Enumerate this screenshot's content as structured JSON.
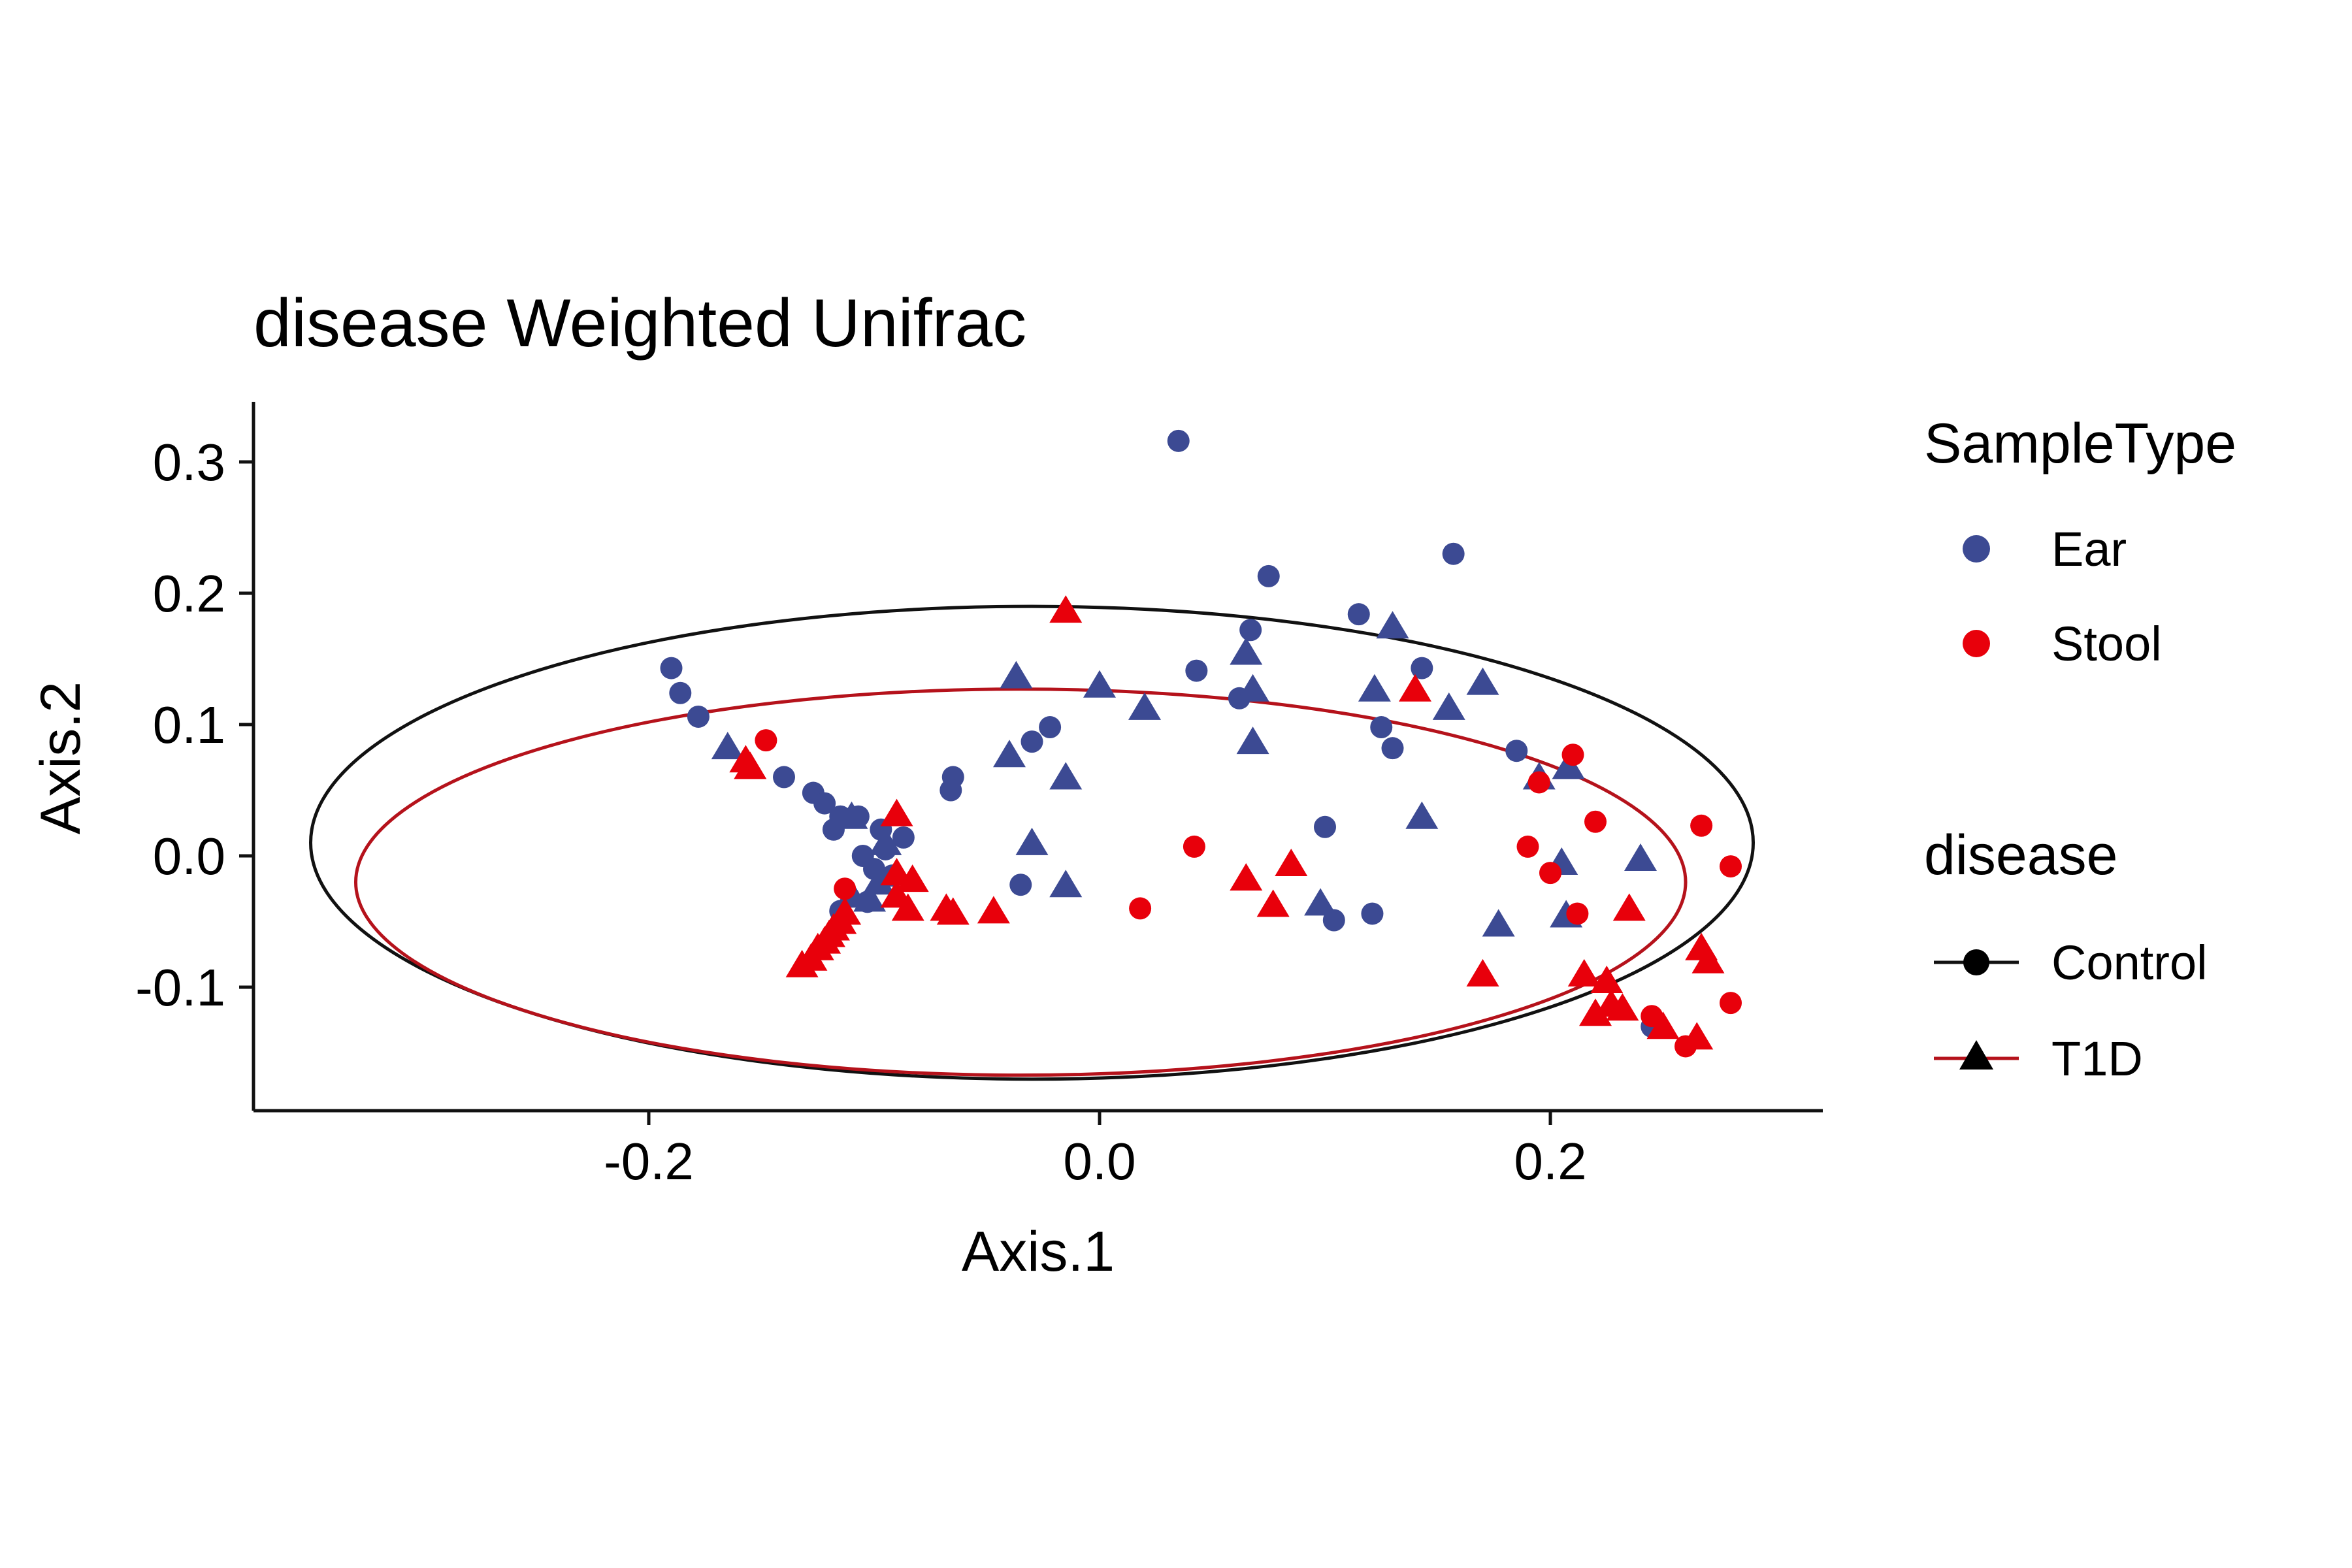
{
  "chart_data": {
    "type": "scatter",
    "title": "disease Weighted Unifrac",
    "xlabel": "Axis.1",
    "ylabel": "Axis.2",
    "xlim": [
      -0.375,
      0.325
    ],
    "ylim": [
      -0.2,
      0.34
    ],
    "x_ticks": [
      -0.2,
      0.0,
      0.2
    ],
    "y_ticks": [
      -0.1,
      0.0,
      0.1,
      0.2,
      0.3
    ],
    "x_tick_labels": [
      "-0.2",
      "0.0",
      "0.2"
    ],
    "y_tick_labels": [
      "-0.1",
      "0.0",
      "0.1",
      "0.2",
      "0.3"
    ],
    "grid": false,
    "legend_position": "right",
    "legend_color": {
      "title": "SampleType",
      "entries": [
        {
          "label": "Ear",
          "color": "#3c4a93"
        },
        {
          "label": "Stool",
          "color": "#e8000b"
        }
      ]
    },
    "legend_shape": {
      "title": "disease",
      "entries": [
        {
          "label": "Control",
          "shape": "circle",
          "line_color": "#111111"
        },
        {
          "label": "T1D",
          "shape": "triangle",
          "line_color": "#b5121b"
        }
      ]
    },
    "ellipses": [
      {
        "group": "Control",
        "center": [
          -0.03,
          0.01
        ],
        "rx": 0.32,
        "ry": 0.18,
        "color": "#111111"
      },
      {
        "group": "T1D",
        "center": [
          -0.035,
          -0.02
        ],
        "rx": 0.295,
        "ry": 0.147,
        "color": "#b5121b"
      }
    ],
    "series": [
      {
        "sample_type": "Ear",
        "disease": "Control",
        "shape": "circle",
        "color": "#3c4a93",
        "points": [
          [
            0.035,
            0.316
          ],
          [
            0.075,
            0.213
          ],
          [
            0.157,
            0.23
          ],
          [
            0.115,
            0.184
          ],
          [
            0.067,
            0.172
          ],
          [
            0.043,
            0.141
          ],
          [
            0.143,
            0.143
          ],
          [
            0.062,
            0.12
          ],
          [
            0.125,
            0.098
          ],
          [
            0.13,
            0.082
          ],
          [
            -0.19,
            0.143
          ],
          [
            -0.186,
            0.124
          ],
          [
            -0.178,
            0.106
          ],
          [
            -0.14,
            0.06
          ],
          [
            -0.127,
            0.048
          ],
          [
            -0.122,
            0.04
          ],
          [
            -0.115,
            0.03
          ],
          [
            -0.107,
            0.03
          ],
          [
            -0.118,
            0.02
          ],
          [
            -0.097,
            0.02
          ],
          [
            -0.087,
            0.014
          ],
          [
            -0.105,
            0.0
          ],
          [
            -0.095,
            0.005
          ],
          [
            -0.1,
            -0.01
          ],
          [
            -0.092,
            -0.015
          ],
          [
            -0.065,
            0.06
          ],
          [
            -0.066,
            0.05
          ],
          [
            -0.022,
            0.098
          ],
          [
            -0.03,
            0.087
          ],
          [
            -0.035,
            -0.022
          ],
          [
            0.1,
            0.022
          ],
          [
            0.104,
            -0.049
          ],
          [
            0.121,
            -0.044
          ],
          [
            0.185,
            0.08
          ],
          [
            0.245,
            -0.13
          ],
          [
            -0.115,
            -0.042
          ],
          [
            -0.103,
            -0.035
          ]
        ]
      },
      {
        "sample_type": "Ear",
        "disease": "T1D",
        "shape": "triangle",
        "color": "#3c4a93",
        "points": [
          [
            0.13,
            0.175
          ],
          [
            0.065,
            0.155
          ],
          [
            0.0,
            0.13
          ],
          [
            0.02,
            0.113
          ],
          [
            0.068,
            0.127
          ],
          [
            -0.037,
            0.137
          ],
          [
            0.122,
            0.127
          ],
          [
            0.155,
            0.113
          ],
          [
            0.17,
            0.132
          ],
          [
            0.068,
            0.087
          ],
          [
            -0.04,
            0.077
          ],
          [
            -0.015,
            0.06
          ],
          [
            0.143,
            0.03
          ],
          [
            0.195,
            0.06
          ],
          [
            0.208,
            0.068
          ],
          [
            -0.165,
            0.083
          ],
          [
            -0.11,
            0.03
          ],
          [
            -0.095,
            0.01
          ],
          [
            -0.098,
            -0.02
          ],
          [
            -0.102,
            -0.033
          ],
          [
            -0.11,
            -0.03
          ],
          [
            -0.03,
            0.01
          ],
          [
            -0.015,
            -0.022
          ],
          [
            0.098,
            -0.036
          ],
          [
            0.177,
            -0.052
          ],
          [
            0.205,
            -0.005
          ],
          [
            0.207,
            -0.045
          ],
          [
            0.24,
            -0.002
          ]
        ]
      },
      {
        "sample_type": "Stool",
        "disease": "Control",
        "shape": "circle",
        "color": "#e8000b",
        "points": [
          [
            -0.148,
            0.088
          ],
          [
            -0.113,
            -0.025
          ],
          [
            0.042,
            0.007
          ],
          [
            0.018,
            -0.04
          ],
          [
            0.19,
            0.007
          ],
          [
            0.195,
            0.056
          ],
          [
            0.21,
            0.077
          ],
          [
            0.22,
            0.026
          ],
          [
            0.2,
            -0.013
          ],
          [
            0.212,
            -0.044
          ],
          [
            0.267,
            0.023
          ],
          [
            0.28,
            -0.008
          ],
          [
            0.28,
            -0.112
          ],
          [
            0.245,
            -0.122
          ],
          [
            0.26,
            -0.145
          ]
        ]
      },
      {
        "sample_type": "Stool",
        "disease": "T1D",
        "shape": "triangle",
        "color": "#e8000b",
        "points": [
          [
            -0.015,
            0.187
          ],
          [
            0.14,
            0.127
          ],
          [
            -0.157,
            0.073
          ],
          [
            -0.155,
            0.068
          ],
          [
            -0.09,
            0.032
          ],
          [
            -0.09,
            -0.013
          ],
          [
            -0.083,
            -0.018
          ],
          [
            -0.09,
            -0.03
          ],
          [
            -0.085,
            -0.04
          ],
          [
            -0.068,
            -0.04
          ],
          [
            -0.065,
            -0.043
          ],
          [
            -0.047,
            -0.042
          ],
          [
            -0.113,
            -0.043
          ],
          [
            -0.115,
            -0.05
          ],
          [
            -0.118,
            -0.055
          ],
          [
            -0.12,
            -0.06
          ],
          [
            -0.122,
            -0.065
          ],
          [
            -0.125,
            -0.07
          ],
          [
            -0.128,
            -0.078
          ],
          [
            -0.132,
            -0.083
          ],
          [
            0.065,
            -0.017
          ],
          [
            0.085,
            -0.006
          ],
          [
            0.077,
            -0.037
          ],
          [
            0.17,
            -0.09
          ],
          [
            0.215,
            -0.09
          ],
          [
            0.225,
            -0.095
          ],
          [
            0.22,
            -0.12
          ],
          [
            0.227,
            -0.113
          ],
          [
            0.232,
            -0.116
          ],
          [
            0.235,
            -0.04
          ],
          [
            0.25,
            -0.13
          ],
          [
            0.265,
            -0.138
          ],
          [
            0.267,
            -0.07
          ],
          [
            0.27,
            -0.08
          ]
        ]
      }
    ]
  }
}
